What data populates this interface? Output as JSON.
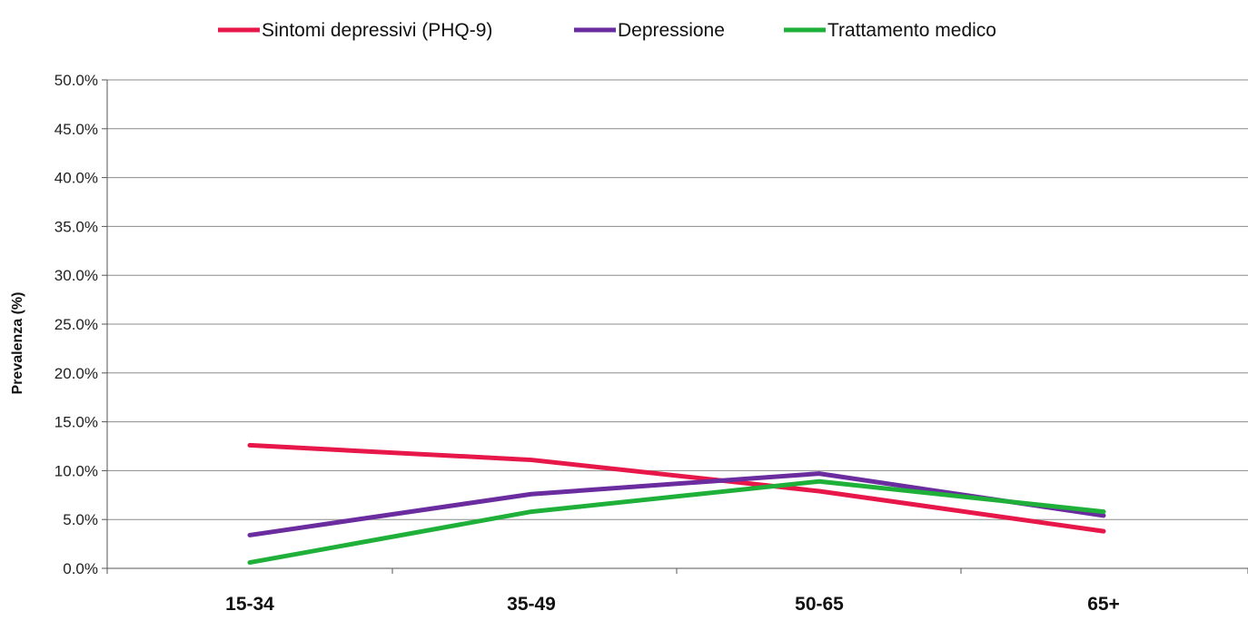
{
  "chart_data": {
    "type": "line",
    "title": "",
    "xlabel": "",
    "ylabel": "Prevalenza (%)",
    "categories": [
      "15-34",
      "35-49",
      "50-65",
      "65+"
    ],
    "ylim": [
      0,
      50
    ],
    "y_ticks": [
      "0.0%",
      "5.0%",
      "10.0%",
      "15.0%",
      "20.0%",
      "25.0%",
      "30.0%",
      "35.0%",
      "40.0%",
      "45.0%",
      "50.0%"
    ],
    "grid": true,
    "legend_position": "top",
    "series": [
      {
        "name": "Sintomi depressivi (PHQ-9)",
        "color": "#e8174a",
        "values": [
          12.6,
          11.1,
          7.9,
          3.8
        ]
      },
      {
        "name": "Depressione",
        "color": "#6a2c9e",
        "values": [
          3.4,
          7.6,
          9.7,
          5.4
        ]
      },
      {
        "name": "Trattamento medico",
        "color": "#1fb03a",
        "values": [
          0.6,
          5.8,
          8.9,
          5.8
        ]
      }
    ]
  }
}
